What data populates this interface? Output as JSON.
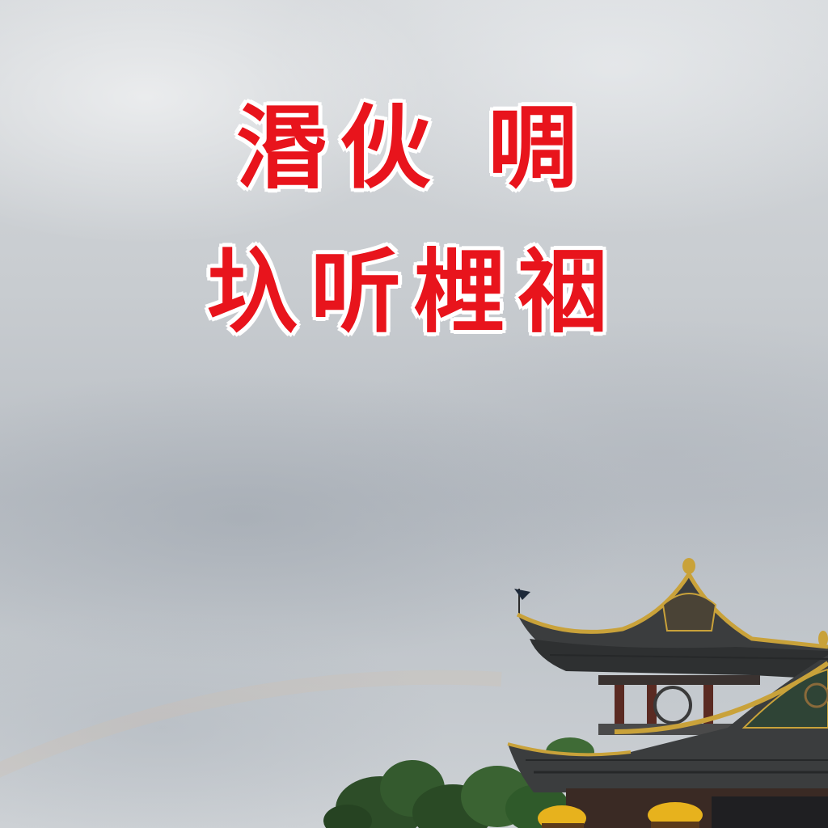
{
  "headline": {
    "line1": "湣伙 啁",
    "line2": "圦听榸䄄"
  },
  "colors": {
    "headline_text": "#e8141c",
    "headline_outline": "#ffffff",
    "sky": "#c8ccd0",
    "roof_tile": "#3b3d3e",
    "roof_trim": "#c9a23a",
    "foliage": "#2f5a2a",
    "flowers": "#e7b21d"
  },
  "icons": [
    "pagoda-roof",
    "tree-cluster",
    "flag"
  ]
}
